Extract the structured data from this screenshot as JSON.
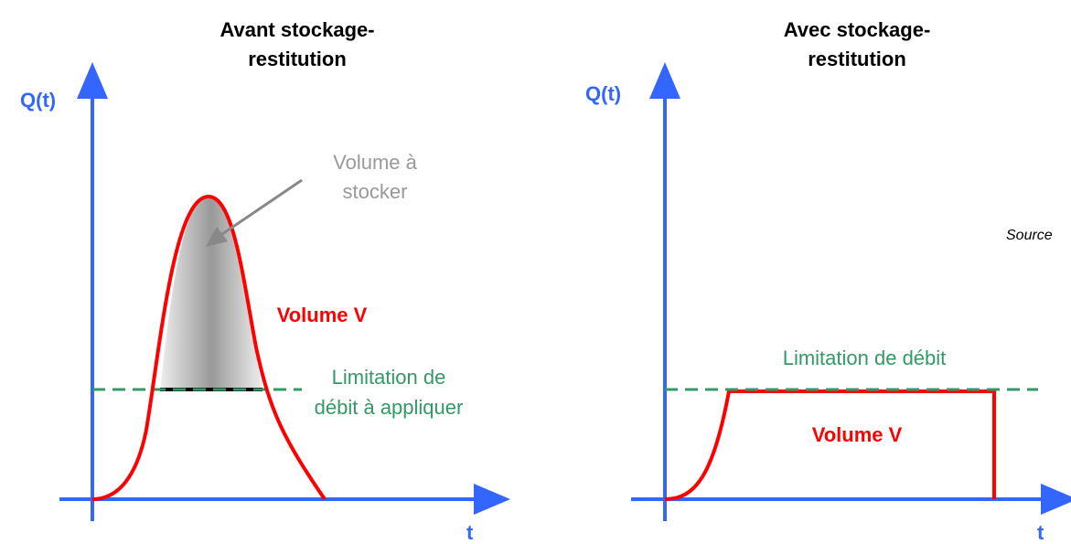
{
  "left": {
    "title": [
      "Avant stockage-",
      "restitution"
    ],
    "y_axis": "Q(t)",
    "x_axis": "t",
    "annotation": [
      "Volume à",
      "stocker"
    ],
    "volume_label": "Volume V",
    "limit_label": [
      "Limitation de",
      "débit à appliquer"
    ]
  },
  "right": {
    "title": [
      "Avec stockage-",
      "restitution"
    ],
    "y_axis": "Q(t)",
    "x_axis": "t",
    "limit_label": "Limitation de débit",
    "volume_label": "Volume V",
    "source": "Source"
  }
}
